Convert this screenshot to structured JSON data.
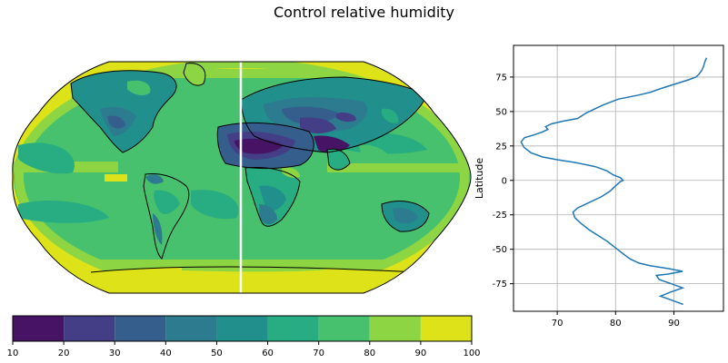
{
  "title": "Control relative humidity",
  "chart_data": [
    {
      "type": "heatmap",
      "projection": "Robinson",
      "variable": "relative humidity",
      "units": "%",
      "colormap": "viridis",
      "colorbar": {
        "levels": [
          10,
          20,
          30,
          40,
          50,
          60,
          70,
          80,
          90,
          100
        ],
        "colors": [
          "#471365",
          "#433e85",
          "#355e8d",
          "#2c7b8e",
          "#21908c",
          "#27ad81",
          "#48c16e",
          "#8ed544",
          "#dde318"
        ],
        "orientation": "horizontal"
      }
    },
    {
      "type": "line",
      "xlabel": "",
      "ylabel": "Latitude",
      "xlim": [
        62.5,
        98.5
      ],
      "ylim": [
        -95,
        98
      ],
      "xticks": [
        70,
        80,
        90
      ],
      "yticks": [
        -75,
        -50,
        -25,
        0,
        25,
        50,
        75
      ],
      "grid": true,
      "line_color": "#1f77b4",
      "series": [
        {
          "points": [
            [
              91.6,
              -90
            ],
            [
              89.0,
              -86
            ],
            [
              87.7,
              -84
            ],
            [
              89.5,
              -81
            ],
            [
              91.5,
              -78
            ],
            [
              89.5,
              -75
            ],
            [
              87.5,
              -72
            ],
            [
              87.0,
              -69
            ],
            [
              89.0,
              -68
            ],
            [
              91.5,
              -66
            ],
            [
              89.0,
              -64
            ],
            [
              86.0,
              -62
            ],
            [
              84.0,
              -60
            ],
            [
              82.5,
              -57
            ],
            [
              81.2,
              -53
            ],
            [
              80.0,
              -49
            ],
            [
              78.5,
              -44
            ],
            [
              77.0,
              -40
            ],
            [
              75.5,
              -36
            ],
            [
              74.0,
              -31
            ],
            [
              73.0,
              -27
            ],
            [
              72.7,
              -23
            ],
            [
              73.5,
              -20
            ],
            [
              75.5,
              -16
            ],
            [
              77.5,
              -12
            ],
            [
              79.0,
              -8
            ],
            [
              80.0,
              -4
            ],
            [
              80.8,
              -1
            ],
            [
              81.3,
              0
            ],
            [
              80.8,
              2
            ],
            [
              79.6,
              4
            ],
            [
              78.5,
              7
            ],
            [
              76.5,
              10
            ],
            [
              73.0,
              13
            ],
            [
              70.0,
              15
            ],
            [
              67.5,
              17
            ],
            [
              65.5,
              20
            ],
            [
              64.3,
              24
            ],
            [
              63.8,
              28
            ],
            [
              64.4,
              31
            ],
            [
              66.0,
              33
            ],
            [
              67.4,
              35
            ],
            [
              68.4,
              37
            ],
            [
              68.0,
              39
            ],
            [
              69.0,
              41
            ],
            [
              71.0,
              43
            ],
            [
              73.5,
              45
            ],
            [
              75.0,
              49
            ],
            [
              76.5,
              52
            ],
            [
              78.0,
              55
            ],
            [
              80.5,
              59
            ],
            [
              84.0,
              62
            ],
            [
              86.0,
              64
            ],
            [
              88.0,
              67
            ],
            [
              89.5,
              69
            ],
            [
              91.0,
              71
            ],
            [
              92.5,
              73
            ],
            [
              93.8,
              75
            ],
            [
              94.3,
              77
            ],
            [
              94.8,
              80
            ],
            [
              95.1,
              83
            ],
            [
              95.3,
              86
            ],
            [
              95.6,
              89
            ]
          ]
        }
      ]
    }
  ]
}
